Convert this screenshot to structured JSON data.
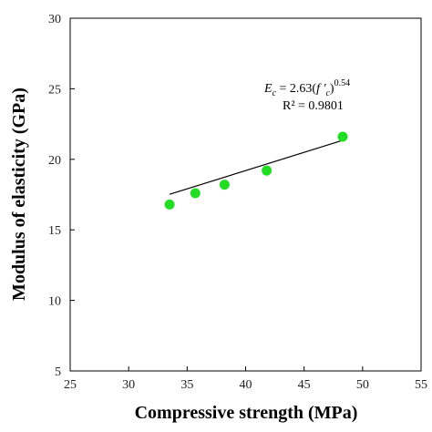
{
  "chart_data": {
    "type": "scatter",
    "xlabel": "Compressive strength (MPa)",
    "ylabel": "Modulus of elasticity (GPa)",
    "xlim": [
      25,
      55
    ],
    "ylim": [
      5,
      30
    ],
    "xticks": [
      "25",
      "30",
      "35",
      "40",
      "45",
      "50",
      "55"
    ],
    "yticks": [
      "5",
      "10",
      "15",
      "20",
      "25",
      "30"
    ],
    "grid": false,
    "x": [
      33.5,
      35.7,
      38.2,
      41.8,
      48.3
    ],
    "y": [
      16.8,
      17.6,
      18.2,
      19.2,
      21.6
    ],
    "marker_color": "#22dd22",
    "trendline": {
      "x_start": 33.5,
      "x_end": 48.3,
      "coefficient": 2.63,
      "exponent": 0.54,
      "color": "#000000"
    },
    "annotations": {
      "equation": {
        "lhs": "E",
        "lhs_sub": "c",
        "rhs_prefix": " = 2.63(",
        "rhs_var": "f '",
        "rhs_sub": "c",
        "rhs_suffix": ")",
        "exponent": "0.54"
      },
      "r_squared": "R² = 0.9801"
    }
  }
}
